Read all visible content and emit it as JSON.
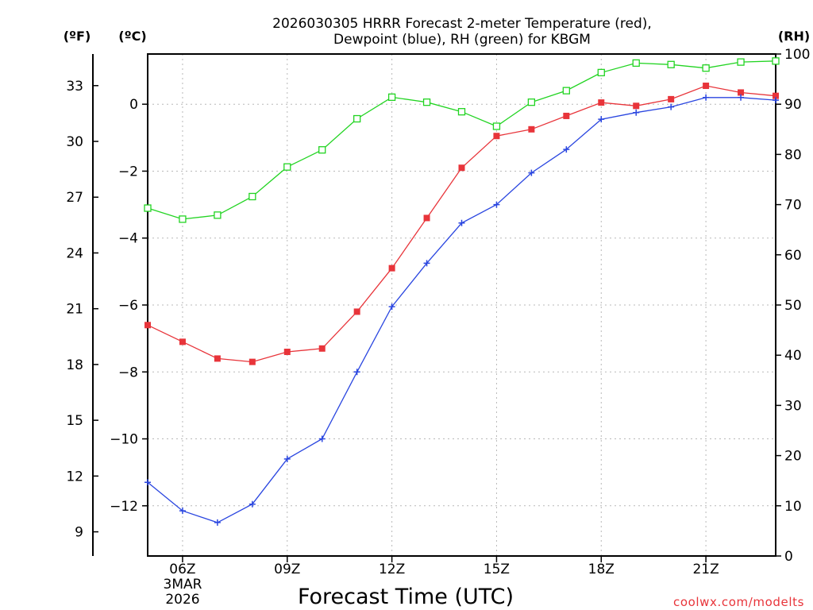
{
  "chart_data": {
    "type": "line",
    "title_line1": "2026030305 HRRR Forecast 2-meter Temperature (red),",
    "title_line2": "Dewpoint (blue), RH (green) for KBGM",
    "xlabel": "Forecast Time (UTC)",
    "x": [
      5,
      6,
      7,
      8,
      9,
      10,
      11,
      12,
      13,
      14,
      15,
      16,
      17,
      18,
      19,
      20,
      21,
      22,
      23
    ],
    "x_ticks": [
      {
        "hour": 6,
        "label": "06Z"
      },
      {
        "hour": 9,
        "label": "09Z"
      },
      {
        "hour": 12,
        "label": "12Z"
      },
      {
        "hour": 15,
        "label": "15Z"
      },
      {
        "hour": 18,
        "label": "18Z"
      },
      {
        "hour": 21,
        "label": "21Z"
      }
    ],
    "date_line1": "3MAR",
    "date_line2": "2026",
    "xlim": [
      5,
      23
    ],
    "y_left_celsius": {
      "unit_label": "(ºC)",
      "ylim": [
        -13.5,
        1.5
      ],
      "ticks": [
        -12,
        -10,
        -8,
        -6,
        -4,
        -2,
        0
      ]
    },
    "y_left_fahrenheit": {
      "unit_label": "(ºF)",
      "ticks": [
        9,
        12,
        15,
        18,
        21,
        24,
        27,
        30,
        33
      ]
    },
    "y_right_rh": {
      "unit_label": "(RH)",
      "ylim": [
        0,
        100
      ],
      "ticks": [
        0,
        10,
        20,
        30,
        40,
        50,
        60,
        70,
        80,
        90,
        100
      ]
    },
    "series": [
      {
        "name": "Temperature",
        "axis": "celsius",
        "color": "#e8343a",
        "marker": "filled-square",
        "values": [
          -6.6,
          -7.1,
          -7.6,
          -7.7,
          -7.4,
          -7.3,
          -6.2,
          -4.9,
          -3.4,
          -1.9,
          -0.95,
          -0.75,
          -0.35,
          0.05,
          -0.05,
          0.15,
          0.55,
          0.35,
          0.25
        ]
      },
      {
        "name": "Dewpoint",
        "axis": "celsius",
        "color": "#2a46e0",
        "marker": "plus",
        "values": [
          -11.3,
          -12.15,
          -12.5,
          -11.95,
          -10.6,
          -10.0,
          -8.0,
          -6.05,
          -4.75,
          -3.55,
          -3.0,
          -2.05,
          -1.35,
          -0.45,
          -0.25,
          -0.08,
          0.2,
          0.2,
          0.12
        ]
      },
      {
        "name": "RH",
        "axis": "rh",
        "color": "#22d422",
        "marker": "open-square",
        "values": [
          69.3,
          67.1,
          67.9,
          71.6,
          77.5,
          80.9,
          87.1,
          91.4,
          90.4,
          88.5,
          85.6,
          90.4,
          92.7,
          96.3,
          98.2,
          97.9,
          97.2,
          98.4,
          98.6
        ]
      }
    ]
  },
  "credit": "coolwx.com/modelts"
}
